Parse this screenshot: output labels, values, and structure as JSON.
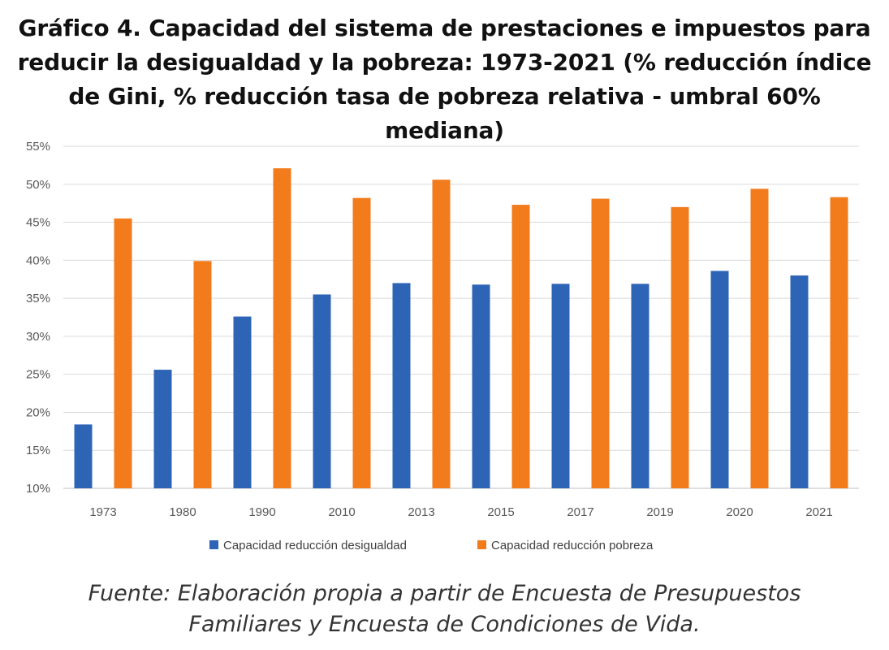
{
  "title_lines": [
    "Gráfico 4. Capacidad del sistema de prestaciones e impuestos para",
    "reducir la desigualdad y la pobreza: 1973-2021 (% reducción índice",
    "de Gini, % reducción tasa de pobreza relativa - umbral 60% mediana)"
  ],
  "source_lines": [
    "Fuente: Elaboración propia a partir de Encuesta de Presupuestos",
    "Familiares y Encuesta de Condiciones de Vida."
  ],
  "chart_data": {
    "type": "bar",
    "categories": [
      "1973",
      "1980",
      "1990",
      "2010",
      "2013",
      "2015",
      "2017",
      "2019",
      "2020",
      "2021"
    ],
    "series": [
      {
        "name": "Capacidad reducción desigualdad",
        "color": "#2E64B6",
        "values": [
          18.4,
          25.6,
          32.6,
          35.5,
          37.0,
          36.8,
          36.9,
          36.9,
          38.6,
          38.0
        ]
      },
      {
        "name": "Capacidad reducción pobreza",
        "color": "#F27B1C",
        "values": [
          45.5,
          39.9,
          52.1,
          48.2,
          50.6,
          47.3,
          48.1,
          47.0,
          49.4,
          48.3
        ]
      }
    ],
    "ylim": [
      10,
      55
    ],
    "yticks": [
      10,
      15,
      20,
      25,
      30,
      35,
      40,
      45,
      50,
      55
    ],
    "ytick_labels": [
      "10%",
      "15%",
      "20%",
      "25%",
      "30%",
      "35%",
      "40%",
      "45%",
      "50%",
      "55%"
    ],
    "xlabel": "",
    "ylabel": "",
    "grid": true,
    "legend_position": "bottom"
  }
}
